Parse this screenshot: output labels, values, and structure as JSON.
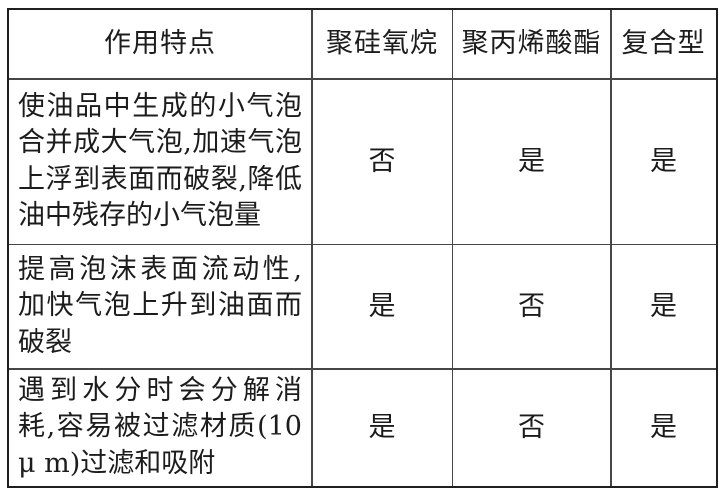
{
  "table": {
    "columns": {
      "feature": "作用特点",
      "col1": "聚硅氧烷",
      "col2": "聚丙烯酸酯",
      "col3": "复合型"
    },
    "rows": [
      {
        "feature_lines": [
          "使油品中生成的小气泡",
          "合并成大气泡,加速气泡",
          "上浮到表面而破裂,降低",
          "油中残存的小气泡量"
        ],
        "values": [
          "否",
          "是",
          "是"
        ]
      },
      {
        "feature_lines": [
          "提高泡沫表面流动性,",
          "加快气泡上升到油面而",
          "破裂"
        ],
        "values": [
          "是",
          "否",
          "是"
        ]
      },
      {
        "feature_lines": [
          "遇到水分时会分解消",
          "耗,容易被过滤材质(10",
          "μ m)过滤和吸附"
        ],
        "values": [
          "是",
          "否",
          "是"
        ]
      }
    ],
    "text_color": "#1c1c1c",
    "grid_line_color": "#464646",
    "outer_border_color": "#1f1f1f",
    "background_color": "#ffffff"
  }
}
